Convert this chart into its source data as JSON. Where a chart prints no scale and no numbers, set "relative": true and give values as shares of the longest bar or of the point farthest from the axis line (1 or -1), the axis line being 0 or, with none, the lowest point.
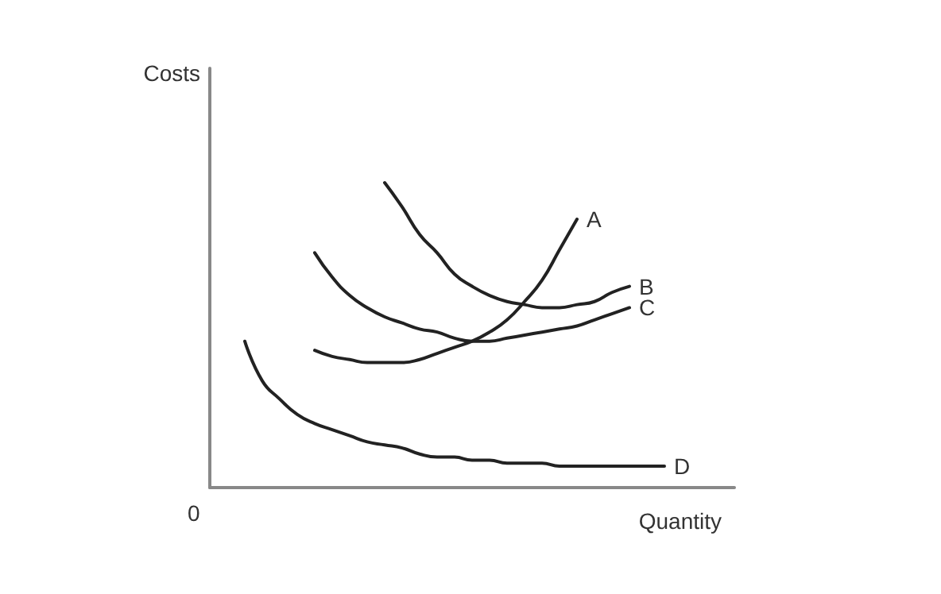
{
  "chart_data": {
    "type": "line",
    "relative": true,
    "xlabel": "Quantity",
    "ylabel": "Costs",
    "annotations": [
      "0"
    ],
    "legend": false,
    "grid": false,
    "marker": "none",
    "line_style": "solid",
    "categories": [
      null,
      null,
      null,
      null,
      null,
      null,
      null,
      null,
      null,
      null,
      null,
      null,
      null,
      null,
      null,
      null,
      null,
      null,
      null,
      null,
      null,
      null,
      null,
      null,
      null,
      null,
      null,
      null,
      null,
      null,
      null
    ],
    "series": [
      {
        "name": "A",
        "color": "#222222",
        "values": [
          null,
          null,
          null,
          null,
          null,
          null,
          0.45,
          0.43,
          0.42,
          0.41,
          0.41,
          0.41,
          0.42,
          0.44,
          0.46,
          0.48,
          0.51,
          0.55,
          0.61,
          0.68,
          0.78,
          0.88,
          null,
          null,
          null,
          null,
          null,
          null,
          null,
          null,
          null
        ]
      },
      {
        "name": "B",
        "color": "#222222",
        "values": [
          null,
          null,
          null,
          null,
          null,
          null,
          null,
          null,
          null,
          null,
          1,
          0.92,
          0.83,
          0.77,
          0.7,
          0.66,
          0.63,
          0.61,
          0.6,
          0.59,
          0.59,
          0.6,
          0.61,
          0.64,
          0.66,
          null,
          null,
          null,
          null,
          null,
          null
        ]
      },
      {
        "name": "C",
        "color": "#222222",
        "values": [
          null,
          null,
          null,
          null,
          null,
          null,
          0.77,
          0.69,
          0.63,
          0.59,
          0.56,
          0.54,
          0.52,
          0.51,
          0.49,
          0.48,
          0.48,
          0.49,
          0.5,
          0.51,
          0.52,
          0.53,
          0.55,
          0.57,
          0.59,
          null,
          null,
          null,
          null,
          null,
          null
        ]
      },
      {
        "name": "D",
        "color": "#222222",
        "values": [
          null,
          null,
          0.48,
          0.35,
          0.29,
          0.24,
          0.21,
          0.19,
          0.17,
          0.15,
          0.14,
          0.13,
          0.11,
          0.1,
          0.1,
          0.09,
          0.09,
          0.08,
          0.08,
          0.08,
          0.07,
          0.07,
          0.07,
          0.07,
          0.07,
          0.07,
          0.07,
          null,
          null,
          null,
          null
        ]
      }
    ]
  }
}
